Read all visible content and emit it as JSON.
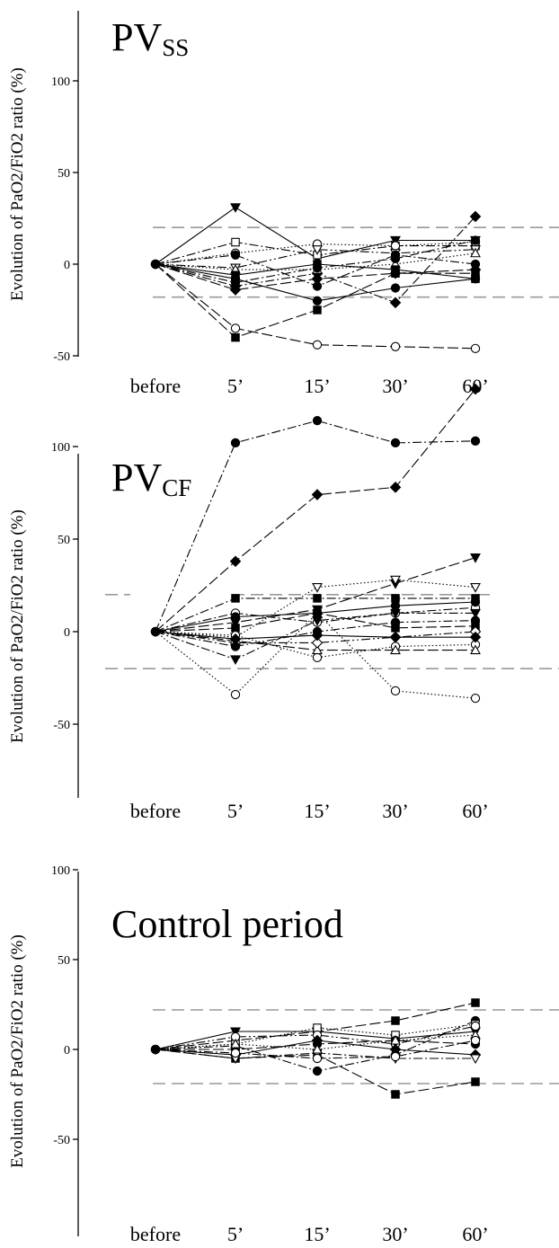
{
  "chart_data": [
    {
      "type": "line",
      "title": "PV",
      "title_sub": "SS",
      "ylabel": "Evolution of PaO2/FiO2 ratio (%)",
      "categories": [
        "before",
        "5’",
        "15’",
        "30’",
        "60’"
      ],
      "yticks": [
        -50,
        0,
        50,
        100
      ],
      "ylim": [
        -50,
        140
      ],
      "reference_lines": [
        20,
        -18
      ],
      "series": [
        {
          "marker": "triangle-down-filled",
          "dash": "solid",
          "values": [
            0,
            31,
            3,
            13,
            13
          ]
        },
        {
          "marker": "circle-open",
          "dash": "long-dash",
          "values": [
            0,
            -35,
            -44,
            -45,
            -46
          ]
        },
        {
          "marker": "square-filled",
          "dash": "long-dash",
          "values": [
            0,
            -40,
            -25,
            -5,
            -5
          ]
        },
        {
          "marker": "diamond-filled",
          "dash": "dash-dot",
          "values": [
            0,
            -12,
            -5,
            -21,
            26
          ]
        },
        {
          "marker": "circle-filled",
          "dash": "solid",
          "values": [
            0,
            -8,
            -20,
            -13,
            -8
          ]
        },
        {
          "marker": "square-open",
          "dash": "dash-dot",
          "values": [
            0,
            12,
            5,
            10,
            10
          ]
        },
        {
          "marker": "circle-open",
          "dash": "dotted",
          "values": [
            0,
            6,
            11,
            10,
            12
          ]
        },
        {
          "marker": "triangle-down-open",
          "dash": "dash-dot-dot",
          "values": [
            0,
            -2,
            8,
            6,
            8
          ]
        },
        {
          "marker": "circle-filled",
          "dash": "dash-dot",
          "values": [
            0,
            5,
            -12,
            5,
            0
          ]
        },
        {
          "marker": "triangle-up-open",
          "dash": "dotted",
          "values": [
            0,
            -3,
            -3,
            0,
            6
          ]
        },
        {
          "marker": "square-filled",
          "dash": "solid",
          "values": [
            0,
            -6,
            0,
            -3,
            -8
          ]
        },
        {
          "marker": "diamond-filled",
          "dash": "long-dash",
          "values": [
            0,
            -14,
            -8,
            -5,
            -3
          ]
        },
        {
          "marker": "circle-filled",
          "dash": "dash-dot",
          "values": [
            0,
            -10,
            -2,
            3,
            13
          ]
        }
      ]
    },
    {
      "type": "line",
      "title": "PV",
      "title_sub": "CF",
      "ylabel": "Evolution of PaO2/FiO2 ratio (%)",
      "categories": [
        "before",
        "5’",
        "15’",
        "30’",
        "60’"
      ],
      "yticks": [
        -50,
        0,
        50,
        100
      ],
      "ylim": [
        -50,
        140
      ],
      "reference_lines": [
        20,
        -20
      ],
      "series": [
        {
          "marker": "circle-filled",
          "dash": "dash-dot",
          "values": [
            0,
            102,
            114,
            102,
            103
          ]
        },
        {
          "marker": "diamond-filled",
          "dash": "long-dash",
          "values": [
            0,
            38,
            74,
            78,
            131
          ]
        },
        {
          "marker": "triangle-down-filled",
          "dash": "long-dash",
          "values": [
            0,
            5,
            12,
            26,
            40
          ]
        },
        {
          "marker": "triangle-down-open",
          "dash": "dotted",
          "values": [
            0,
            -3,
            24,
            28,
            24
          ]
        },
        {
          "marker": "circle-open",
          "dash": "dotted",
          "values": [
            0,
            -34,
            10,
            -32,
            -36
          ]
        },
        {
          "marker": "square-filled",
          "dash": "dash-dot",
          "values": [
            0,
            18,
            18,
            18,
            18
          ]
        },
        {
          "marker": "circle-open",
          "dash": "dash-dot",
          "values": [
            0,
            10,
            5,
            10,
            13
          ]
        },
        {
          "marker": "circle-filled",
          "dash": "solid",
          "values": [
            0,
            8,
            10,
            14,
            16
          ]
        },
        {
          "marker": "triangle-down-filled",
          "dash": "dash-dot",
          "values": [
            0,
            -15,
            6,
            10,
            10
          ]
        },
        {
          "marker": "square-filled",
          "dash": "long-dash",
          "values": [
            0,
            2,
            10,
            2,
            3
          ]
        },
        {
          "marker": "circle-open",
          "dash": "dotted",
          "values": [
            0,
            -2,
            -14,
            -8,
            -7
          ]
        },
        {
          "marker": "triangle-up-open",
          "dash": "long-dash",
          "values": [
            0,
            -5,
            -10,
            -10,
            -10
          ]
        },
        {
          "marker": "diamond-open",
          "dash": "dash-dot-dot",
          "values": [
            0,
            -6,
            -6,
            -3,
            0
          ]
        },
        {
          "marker": "diamond-filled",
          "dash": "solid",
          "values": [
            0,
            -4,
            -2,
            -3,
            -3
          ]
        },
        {
          "marker": "circle-filled",
          "dash": "dash-dot",
          "values": [
            0,
            -8,
            0,
            5,
            6
          ]
        }
      ]
    },
    {
      "type": "line",
      "title": "Control period",
      "title_sub": "",
      "ylabel": "Evolution of PaO2/FiO2 ratio (%)",
      "categories": [
        "before",
        "5’",
        "15’",
        "30’",
        "60’"
      ],
      "yticks": [
        -50,
        0,
        50,
        100
      ],
      "ylim": [
        -50,
        140
      ],
      "reference_lines": [
        22,
        -19
      ],
      "series": [
        {
          "marker": "square-filled",
          "dash": "long-dash",
          "values": [
            0,
            5,
            10,
            16,
            26
          ]
        },
        {
          "marker": "square-filled",
          "dash": "long-dash",
          "values": [
            0,
            -5,
            -3,
            -25,
            -18
          ]
        },
        {
          "marker": "triangle-down-filled",
          "dash": "solid",
          "values": [
            0,
            10,
            10,
            6,
            10
          ]
        },
        {
          "marker": "circle-filled",
          "dash": "dash-dot",
          "values": [
            0,
            2,
            -12,
            -3,
            16
          ]
        },
        {
          "marker": "square-open",
          "dash": "dotted",
          "values": [
            0,
            3,
            12,
            8,
            14
          ]
        },
        {
          "marker": "circle-open",
          "dash": "dash-dot-dot",
          "values": [
            0,
            7,
            8,
            3,
            13
          ]
        },
        {
          "marker": "diamond-filled",
          "dash": "solid",
          "values": [
            0,
            -3,
            5,
            0,
            -3
          ]
        },
        {
          "marker": "triangle-down-open",
          "dash": "dash-dot",
          "values": [
            0,
            -5,
            -2,
            -5,
            -5
          ]
        },
        {
          "marker": "circle-filled",
          "dash": "long-dash",
          "values": [
            0,
            0,
            3,
            5,
            3
          ]
        },
        {
          "marker": "triangle-up-open",
          "dash": "dotted",
          "values": [
            0,
            3,
            0,
            5,
            8
          ]
        },
        {
          "marker": "circle-open",
          "dash": "dash-dot",
          "values": [
            0,
            -2,
            -5,
            -4,
            5
          ]
        }
      ]
    }
  ]
}
